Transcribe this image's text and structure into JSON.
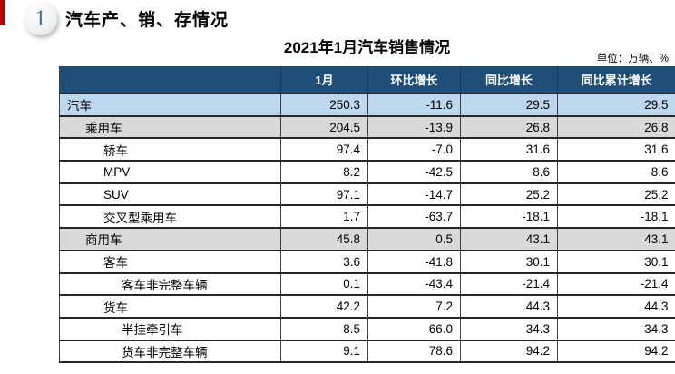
{
  "page": {
    "section_number": "1",
    "section_title": "汽车产、销、存情况",
    "table_title": "2021年1月汽车销售情况",
    "unit_note": "单位：万辆、%"
  },
  "colors": {
    "accent_red": "#C00000",
    "header_bg": "#1F4E79",
    "row_highlight_blue": "#BDD7EE",
    "row_highlight_gray": "#D9D9D9",
    "number_blue": "#41719C",
    "line_dark": "#26262b"
  },
  "table": {
    "columns": [
      "",
      "1月",
      "环比增长",
      "同比增长",
      "同比累计增长"
    ],
    "rows": [
      {
        "label": "汽车",
        "indent": 0,
        "style": "blue",
        "values": [
          "250.3",
          "-11.6",
          "29.5",
          "29.5"
        ]
      },
      {
        "label": "乘用车",
        "indent": 1,
        "style": "gray",
        "values": [
          "204.5",
          "-13.9",
          "26.8",
          "26.8"
        ]
      },
      {
        "label": "轿车",
        "indent": 2,
        "style": "white",
        "values": [
          "97.4",
          "-7.0",
          "31.6",
          "31.6"
        ]
      },
      {
        "label": "MPV",
        "indent": 2,
        "style": "white",
        "values": [
          "8.2",
          "-42.5",
          "8.6",
          "8.6"
        ]
      },
      {
        "label": "SUV",
        "indent": 2,
        "style": "white",
        "values": [
          "97.1",
          "-14.7",
          "25.2",
          "25.2"
        ]
      },
      {
        "label": "交叉型乘用车",
        "indent": 2,
        "style": "white",
        "values": [
          "1.7",
          "-63.7",
          "-18.1",
          "-18.1"
        ]
      },
      {
        "label": "商用车",
        "indent": 1,
        "style": "gray",
        "values": [
          "45.8",
          "0.5",
          "43.1",
          "43.1"
        ]
      },
      {
        "label": "客车",
        "indent": 2,
        "style": "white",
        "values": [
          "3.6",
          "-41.8",
          "30.1",
          "30.1"
        ]
      },
      {
        "label": "客车非完整车辆",
        "indent": 3,
        "style": "white",
        "values": [
          "0.1",
          "-43.4",
          "-21.4",
          "-21.4"
        ]
      },
      {
        "label": "货车",
        "indent": 2,
        "style": "white",
        "values": [
          "42.2",
          "7.2",
          "44.3",
          "44.3"
        ]
      },
      {
        "label": "半挂牵引车",
        "indent": 3,
        "style": "white",
        "values": [
          "8.5",
          "66.0",
          "34.3",
          "34.3"
        ]
      },
      {
        "label": "货车非完整车辆",
        "indent": 3,
        "style": "white",
        "values": [
          "9.1",
          "78.6",
          "94.2",
          "94.2"
        ]
      }
    ]
  }
}
